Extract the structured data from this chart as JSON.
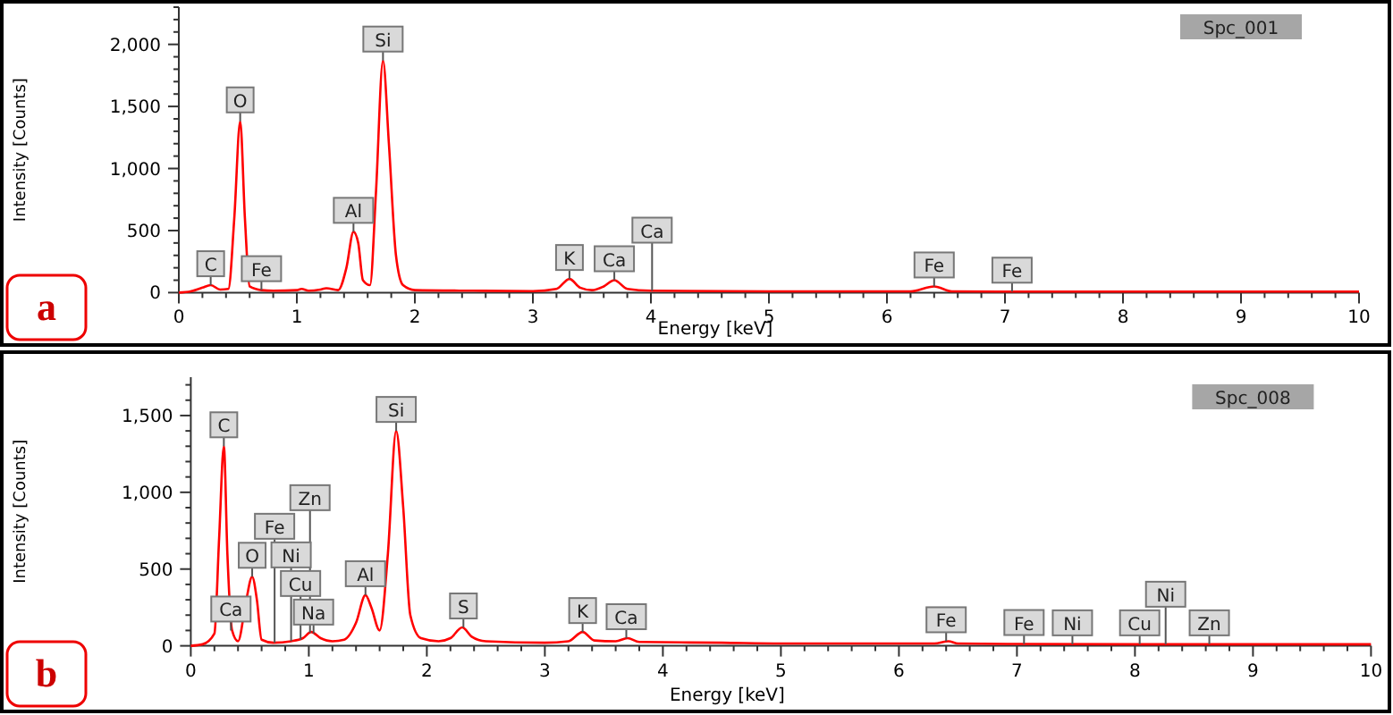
{
  "chart_data": [
    {
      "type": "line",
      "title": "a",
      "xlabel": "Energy [keV]",
      "ylabel": "Intensity [Counts]",
      "grid": false,
      "xlim": [
        0,
        10
      ],
      "ylim": [
        0,
        2300
      ],
      "xticks": [
        0,
        {
          "value": 0.2,
          "label": null
        },
        {
          "value": 0.4,
          "label": null
        },
        {
          "value": 0.6,
          "label": null
        },
        {
          "value": 0.8,
          "label": null
        },
        1,
        {
          "value": 1.2,
          "label": null
        },
        {
          "value": 1.4,
          "label": null
        },
        {
          "value": 1.6,
          "label": null
        },
        {
          "value": 1.8,
          "label": null
        },
        2,
        {
          "value": 2.2,
          "label": null
        },
        {
          "value": 2.4,
          "label": null
        },
        {
          "value": 2.6,
          "label": null
        },
        {
          "value": 2.8,
          "label": null
        },
        3,
        {
          "value": 3.2,
          "label": null
        },
        {
          "value": 3.4,
          "label": null
        },
        {
          "value": 3.6,
          "label": null
        },
        {
          "value": 3.8,
          "label": null
        },
        4,
        {
          "value": 4.2,
          "label": null
        },
        {
          "value": 4.4,
          "label": null
        },
        {
          "value": 4.6,
          "label": null
        },
        {
          "value": 4.8,
          "label": null
        },
        5,
        {
          "value": 5.2,
          "label": null
        },
        {
          "value": 5.4,
          "label": null
        },
        {
          "value": 5.6,
          "label": null
        },
        {
          "value": 5.8,
          "label": null
        },
        6,
        {
          "value": 6.2,
          "label": null
        },
        {
          "value": 6.4,
          "label": null
        },
        {
          "value": 6.6,
          "label": null
        },
        {
          "value": 6.8,
          "label": null
        },
        7,
        {
          "value": 7.2,
          "label": null
        },
        {
          "value": 7.4,
          "label": null
        },
        {
          "value": 7.6,
          "label": null
        },
        {
          "value": 7.8,
          "label": null
        },
        8,
        {
          "value": 8.2,
          "label": null
        },
        {
          "value": 8.4,
          "label": null
        },
        {
          "value": 8.6,
          "label": null
        },
        {
          "value": 8.8,
          "label": null
        },
        9,
        {
          "value": 9.2,
          "label": null
        },
        {
          "value": 9.4,
          "label": null
        },
        {
          "value": 9.6,
          "label": null
        },
        {
          "value": 9.8,
          "label": null
        },
        10
      ],
      "yticks": [
        {
          "value": 0,
          "label": "0"
        },
        {
          "value": 100,
          "label": null
        },
        {
          "value": 200,
          "label": null
        },
        {
          "value": 300,
          "label": null
        },
        {
          "value": 400,
          "label": null
        },
        {
          "value": 500,
          "label": "500"
        },
        {
          "value": 600,
          "label": null
        },
        {
          "value": 700,
          "label": null
        },
        {
          "value": 800,
          "label": null
        },
        {
          "value": 900,
          "label": null
        },
        {
          "value": 1000,
          "label": "1,000"
        },
        {
          "value": 1100,
          "label": null
        },
        {
          "value": 1200,
          "label": null
        },
        {
          "value": 1300,
          "label": null
        },
        {
          "value": 1400,
          "label": null
        },
        {
          "value": 1500,
          "label": "1,500"
        },
        {
          "value": 1600,
          "label": null
        },
        {
          "value": 1700,
          "label": null
        },
        {
          "value": 1800,
          "label": null
        },
        {
          "value": 1900,
          "label": null
        },
        {
          "value": 2000,
          "label": "2,000"
        },
        {
          "value": 2100,
          "label": null
        },
        {
          "value": 2200,
          "label": null
        },
        {
          "value": 2300,
          "label": null
        }
      ],
      "series": [
        {
          "color": "#ff0000",
          "x": [
            0,
            0.1,
            0.2,
            0.27,
            0.35,
            0.42,
            0.47,
            0.52,
            0.56,
            0.6,
            0.7,
            0.8,
            1.0,
            1.04,
            1.1,
            1.2,
            1.25,
            1.35,
            1.42,
            1.48,
            1.52,
            1.56,
            1.62,
            1.67,
            1.73,
            1.78,
            1.84,
            1.9,
            2.0,
            2.5,
            3.0,
            3.2,
            3.31,
            3.4,
            3.5,
            3.6,
            3.69,
            3.8,
            4.0,
            5.0,
            6.2,
            6.4,
            6.55,
            7.0,
            8.0,
            10.0
          ],
          "values": [
            0,
            10,
            40,
            60,
            25,
            30,
            600,
            1380,
            600,
            50,
            20,
            15,
            20,
            30,
            15,
            25,
            35,
            20,
            200,
            490,
            400,
            100,
            60,
            800,
            1870,
            1200,
            300,
            60,
            20,
            15,
            12,
            30,
            110,
            40,
            20,
            50,
            100,
            30,
            15,
            10,
            10,
            50,
            10,
            8,
            8,
            8
          ]
        }
      ],
      "annotations": [
        "Spc_001",
        {
          "text": "C",
          "x": 0.27,
          "y": 60
        },
        {
          "text": "Fe",
          "x": 0.7,
          "y": 20
        },
        {
          "text": "O",
          "x": 0.52,
          "y": 1380
        },
        {
          "text": "Al",
          "x": 1.48,
          "y": 490
        },
        {
          "text": "Si",
          "x": 1.73,
          "y": 1870
        },
        {
          "text": "K",
          "x": 3.31,
          "y": 110
        },
        {
          "text": "Ca",
          "x": 3.69,
          "y": 100
        },
        {
          "text": "Ca",
          "x": 4.01,
          "y": 15
        },
        {
          "text": "Fe",
          "x": 6.4,
          "y": 50
        },
        {
          "text": "Fe",
          "x": 7.06,
          "y": 8
        }
      ]
    },
    {
      "type": "line",
      "title": "b",
      "xlabel": "Energy [keV]",
      "ylabel": "Intensity [Counts]",
      "grid": false,
      "xlim": [
        0,
        10
      ],
      "ylim": [
        0,
        1750
      ],
      "xticks": [
        0,
        {
          "value": 0.2,
          "label": null
        },
        {
          "value": 0.4,
          "label": null
        },
        {
          "value": 0.6,
          "label": null
        },
        {
          "value": 0.8,
          "label": null
        },
        1,
        {
          "value": 1.2,
          "label": null
        },
        {
          "value": 1.4,
          "label": null
        },
        {
          "value": 1.6,
          "label": null
        },
        {
          "value": 1.8,
          "label": null
        },
        2,
        {
          "value": 2.2,
          "label": null
        },
        {
          "value": 2.4,
          "label": null
        },
        {
          "value": 2.6,
          "label": null
        },
        {
          "value": 2.8,
          "label": null
        },
        3,
        {
          "value": 3.2,
          "label": null
        },
        {
          "value": 3.4,
          "label": null
        },
        {
          "value": 3.6,
          "label": null
        },
        {
          "value": 3.8,
          "label": null
        },
        4,
        {
          "value": 4.2,
          "label": null
        },
        {
          "value": 4.4,
          "label": null
        },
        {
          "value": 4.6,
          "label": null
        },
        {
          "value": 4.8,
          "label": null
        },
        5,
        {
          "value": 5.2,
          "label": null
        },
        {
          "value": 5.4,
          "label": null
        },
        {
          "value": 5.6,
          "label": null
        },
        {
          "value": 5.8,
          "label": null
        },
        6,
        {
          "value": 6.2,
          "label": null
        },
        {
          "value": 6.4,
          "label": null
        },
        {
          "value": 6.6,
          "label": null
        },
        {
          "value": 6.8,
          "label": null
        },
        7,
        {
          "value": 7.2,
          "label": null
        },
        {
          "value": 7.4,
          "label": null
        },
        {
          "value": 7.6,
          "label": null
        },
        {
          "value": 7.8,
          "label": null
        },
        8,
        {
          "value": 8.2,
          "label": null
        },
        {
          "value": 8.4,
          "label": null
        },
        {
          "value": 8.6,
          "label": null
        },
        {
          "value": 8.8,
          "label": null
        },
        9,
        {
          "value": 9.2,
          "label": null
        },
        {
          "value": 9.4,
          "label": null
        },
        {
          "value": 9.6,
          "label": null
        },
        {
          "value": 9.8,
          "label": null
        },
        10
      ],
      "yticks": [
        {
          "value": 0,
          "label": "0"
        },
        {
          "value": 100,
          "label": null
        },
        {
          "value": 200,
          "label": null
        },
        {
          "value": 300,
          "label": null
        },
        {
          "value": 400,
          "label": null
        },
        {
          "value": 500,
          "label": "500"
        },
        {
          "value": 600,
          "label": null
        },
        {
          "value": 700,
          "label": null
        },
        {
          "value": 800,
          "label": null
        },
        {
          "value": 900,
          "label": null
        },
        {
          "value": 1000,
          "label": "1,000"
        },
        {
          "value": 1100,
          "label": null
        },
        {
          "value": 1200,
          "label": null
        },
        {
          "value": 1300,
          "label": null
        },
        {
          "value": 1400,
          "label": null
        },
        {
          "value": 1500,
          "label": "1,500"
        },
        {
          "value": 1600,
          "label": null
        },
        {
          "value": 1700,
          "label": null
        }
      ],
      "series": [
        {
          "color": "#ff0000",
          "x": [
            0,
            0.1,
            0.2,
            0.24,
            0.28,
            0.31,
            0.35,
            0.4,
            0.47,
            0.52,
            0.56,
            0.6,
            0.7,
            0.85,
            0.95,
            1.02,
            1.1,
            1.2,
            1.3,
            1.4,
            1.48,
            1.53,
            1.6,
            1.67,
            1.74,
            1.8,
            1.86,
            1.95,
            2.1,
            2.2,
            2.3,
            2.38,
            2.5,
            3.0,
            3.2,
            3.32,
            3.42,
            3.6,
            3.7,
            3.8,
            4.5,
            5.0,
            6.3,
            6.42,
            6.5,
            7.0,
            8.0,
            10.0
          ],
          "values": [
            0,
            10,
            80,
            700,
            1300,
            600,
            100,
            30,
            300,
            450,
            300,
            40,
            20,
            30,
            50,
            90,
            50,
            30,
            40,
            150,
            330,
            250,
            100,
            600,
            1400,
            900,
            200,
            50,
            30,
            50,
            120,
            60,
            30,
            20,
            30,
            90,
            35,
            30,
            50,
            25,
            20,
            15,
            15,
            30,
            15,
            12,
            10,
            10
          ]
        }
      ],
      "annotations": [
        "Spc_008",
        {
          "text": "Ca",
          "x": 0.34,
          "y": 100
        },
        {
          "text": "C",
          "x": 0.28,
          "y": 1300
        },
        {
          "text": "O",
          "x": 0.52,
          "y": 450
        },
        {
          "text": "Na",
          "x": 1.04,
          "y": 80
        },
        {
          "text": "Cu",
          "x": 0.93,
          "y": 40
        },
        {
          "text": "Ni",
          "x": 0.85,
          "y": 30
        },
        {
          "text": "Fe",
          "x": 0.71,
          "y": 20
        },
        {
          "text": "Zn",
          "x": 1.01,
          "y": 85
        },
        {
          "text": "Al",
          "x": 1.48,
          "y": 330
        },
        {
          "text": "Si",
          "x": 1.74,
          "y": 1400
        },
        {
          "text": "S",
          "x": 2.31,
          "y": 120
        },
        {
          "text": "K",
          "x": 3.32,
          "y": 90
        },
        {
          "text": "Ca",
          "x": 3.69,
          "y": 50
        },
        {
          "text": "Fe",
          "x": 6.4,
          "y": 30
        },
        {
          "text": "Fe",
          "x": 7.06,
          "y": 12
        },
        {
          "text": "Ni",
          "x": 7.47,
          "y": 10
        },
        {
          "text": "Cu",
          "x": 8.04,
          "y": 10
        },
        {
          "text": "Ni",
          "x": 8.26,
          "y": 10
        },
        {
          "text": "Zn",
          "x": 8.63,
          "y": 10
        }
      ]
    }
  ]
}
